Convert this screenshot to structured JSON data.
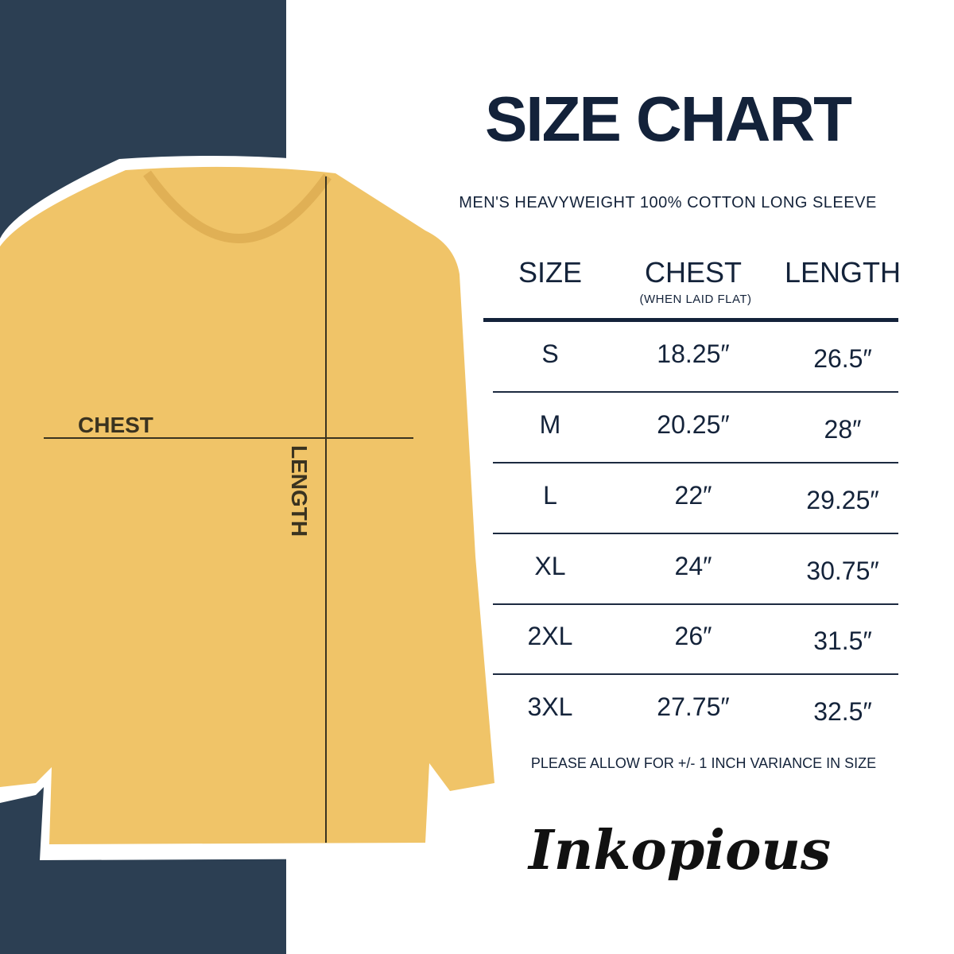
{
  "title": "SIZE CHART",
  "subtitle": "MEN'S HEAVYWEIGHT 100% COTTON LONG SLEEVE",
  "colors": {
    "navy_panel": "#2c3f53",
    "shirt": "#f0c468",
    "text": "#13223a"
  },
  "shirt_labels": {
    "chest": "CHEST",
    "length": "LENGTH"
  },
  "table": {
    "headers": [
      "SIZE",
      "CHEST",
      "LENGTH"
    ],
    "chest_note": "(WHEN LAID FLAT)",
    "rows": [
      [
        "S",
        "18.25″",
        "26.5″"
      ],
      [
        "M",
        "20.25″",
        "28″"
      ],
      [
        "L",
        "22″",
        "29.25″"
      ],
      [
        "XL",
        "24″",
        "30.75″"
      ],
      [
        "2XL",
        "26″",
        "31.5″"
      ],
      [
        "3XL",
        "27.75″",
        "32.5″"
      ]
    ]
  },
  "note": "PLEASE ALLOW FOR +/- 1 INCH VARIANCE IN SIZE",
  "brand": "Inkopious"
}
